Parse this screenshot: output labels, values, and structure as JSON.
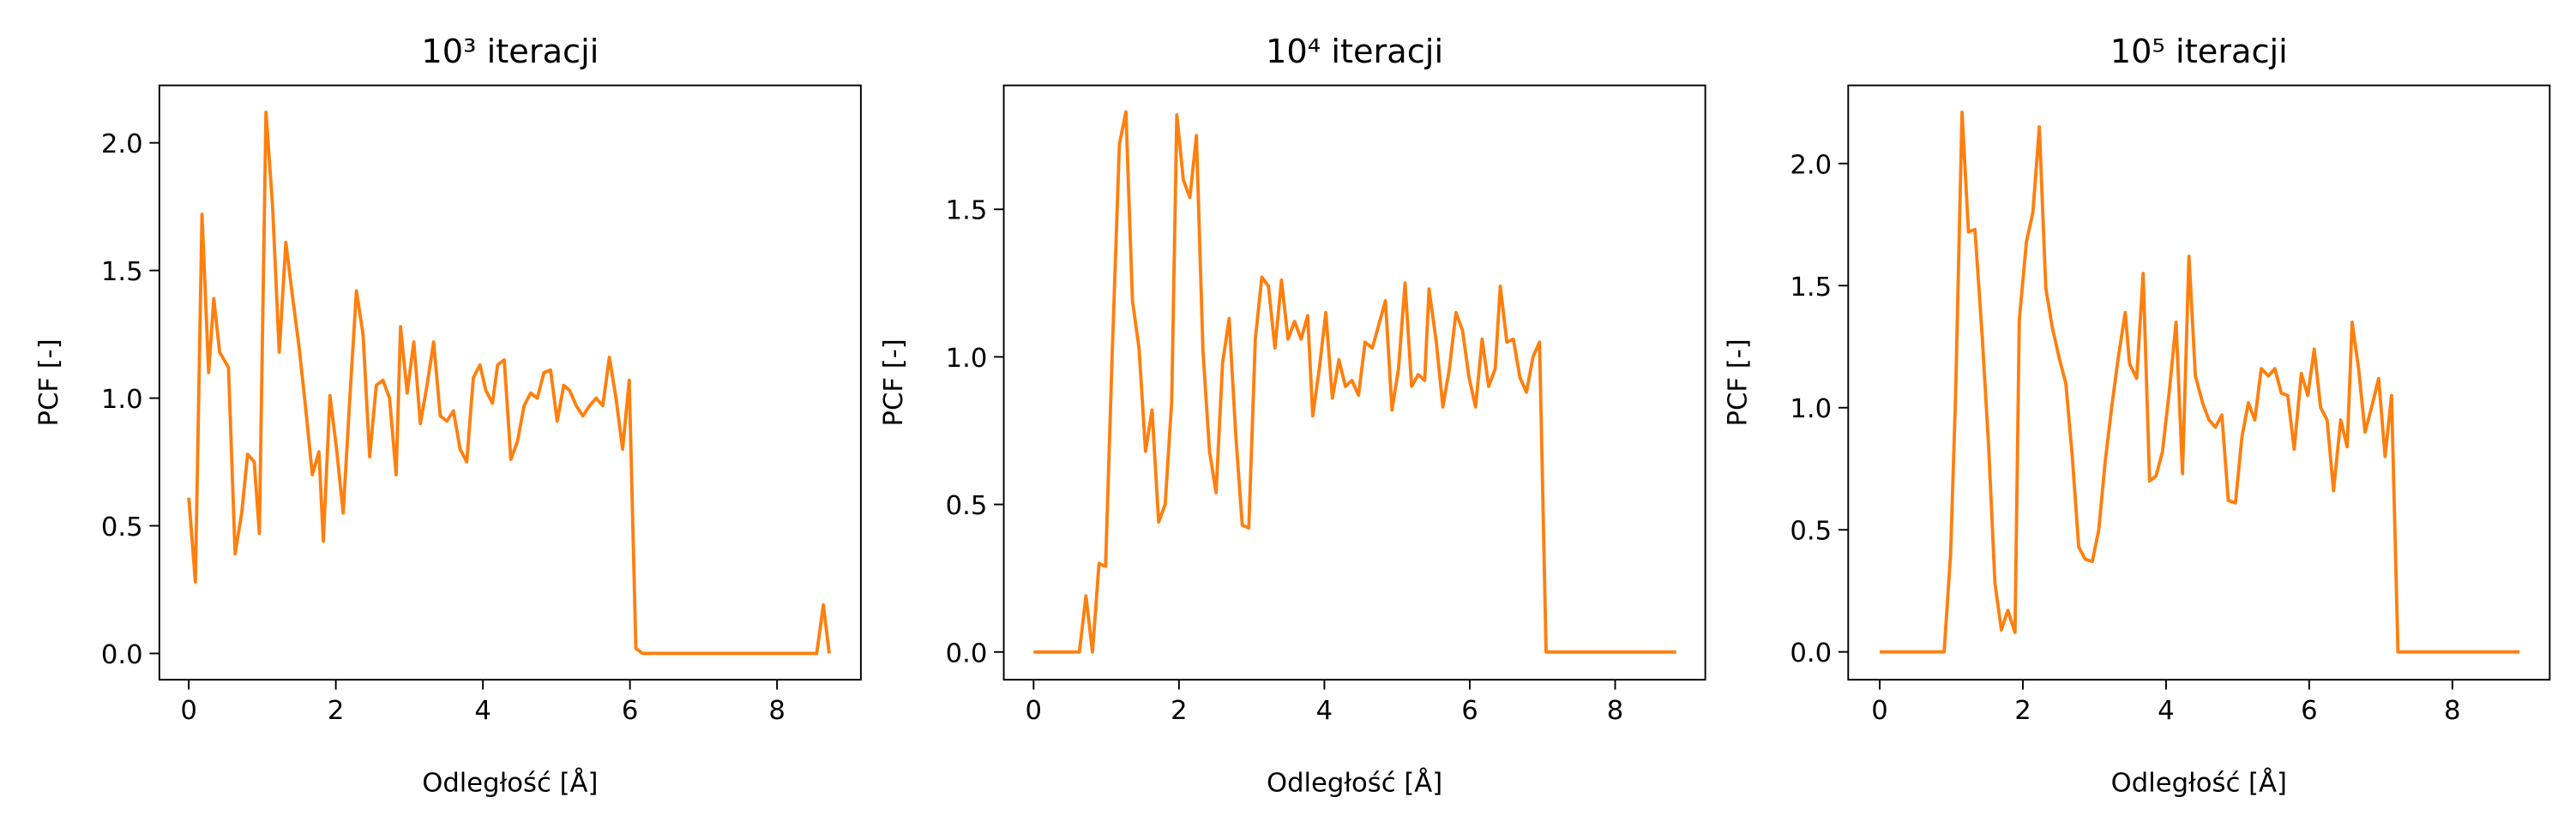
{
  "chart_data": [
    {
      "type": "line",
      "title": "10³ iteracji",
      "xlabel": "Odległość [Å]",
      "ylabel": "PCF [-]",
      "color": "#ff7f0e",
      "xlim": [
        -0.4,
        9.14
      ],
      "ylim": [
        -0.103,
        2.225
      ],
      "xticks": [
        0,
        2,
        4,
        6,
        8
      ],
      "yticks": [
        {
          "value": 0,
          "label": "0.0"
        },
        {
          "value": 0.5,
          "label": "0.5"
        },
        {
          "value": 1,
          "label": "1.0"
        },
        {
          "value": 1.5,
          "label": "1.5"
        },
        {
          "value": 2,
          "label": "2.0"
        }
      ],
      "x": [
        0,
        0.09,
        0.18,
        0.27,
        0.34,
        0.42,
        0.54,
        0.63,
        0.72,
        0.8,
        0.89,
        0.96,
        1.05,
        1.14,
        1.23,
        1.32,
        1.41,
        1.5,
        1.59,
        1.68,
        1.77,
        1.83,
        1.92,
        2.01,
        2.1,
        2.19,
        2.28,
        2.37,
        2.46,
        2.55,
        2.64,
        2.73,
        2.82,
        2.88,
        2.97,
        3.06,
        3.15,
        3.24,
        3.33,
        3.42,
        3.51,
        3.6,
        3.69,
        3.78,
        3.87,
        3.96,
        4.04,
        4.13,
        4.2,
        4.29,
        4.38,
        4.47,
        4.56,
        4.65,
        4.74,
        4.83,
        4.92,
        5.01,
        5.1,
        5.18,
        5.27,
        5.36,
        5.45,
        5.54,
        5.63,
        5.72,
        5.81,
        5.9,
        5.99,
        6.08,
        6.17,
        8.54,
        8.63,
        8.71
      ],
      "values": [
        0.61,
        0.28,
        1.72,
        1.1,
        1.39,
        1.18,
        1.12,
        0.39,
        0.55,
        0.78,
        0.75,
        0.47,
        2.12,
        1.75,
        1.18,
        1.61,
        1.4,
        1.2,
        0.96,
        0.7,
        0.79,
        0.44,
        1.01,
        0.8,
        0.55,
        1.0,
        1.42,
        1.25,
        0.77,
        1.05,
        1.07,
        1.0,
        0.7,
        1.28,
        1.02,
        1.22,
        0.9,
        1.05,
        1.22,
        0.93,
        0.91,
        0.95,
        0.8,
        0.75,
        1.08,
        1.13,
        1.03,
        0.98,
        1.13,
        1.15,
        0.76,
        0.83,
        0.97,
        1.02,
        1.0,
        1.1,
        1.11,
        0.91,
        1.05,
        1.03,
        0.97,
        0.93,
        0.97,
        1.0,
        0.97,
        1.16,
        1.0,
        0.8,
        1.07,
        0.02,
        0,
        0,
        0.19,
        0
      ]
    },
    {
      "type": "line",
      "title": "10⁴ iteracji",
      "xlabel": "Odległość [Å]",
      "ylabel": "PCF [-]",
      "color": "#ff7f0e",
      "xlim": [
        -0.41,
        9.24
      ],
      "ylim": [
        -0.094,
        1.92
      ],
      "xticks": [
        0,
        2,
        4,
        6,
        8
      ],
      "yticks": [
        {
          "value": 0,
          "label": "0.0"
        },
        {
          "value": 0.5,
          "label": "0.5"
        },
        {
          "value": 1,
          "label": "1.0"
        },
        {
          "value": 1.5,
          "label": "1.5"
        }
      ],
      "x": [
        0,
        0.63,
        0.72,
        0.81,
        0.9,
        0.99,
        1.08,
        1.18,
        1.27,
        1.36,
        1.45,
        1.54,
        1.63,
        1.72,
        1.81,
        1.9,
        1.97,
        2.06,
        2.15,
        2.24,
        2.33,
        2.42,
        2.51,
        2.6,
        2.69,
        2.78,
        2.87,
        2.96,
        3.05,
        3.14,
        3.23,
        3.32,
        3.41,
        3.5,
        3.59,
        3.68,
        3.77,
        3.84,
        3.93,
        4.02,
        4.11,
        4.2,
        4.29,
        4.38,
        4.47,
        4.56,
        4.66,
        4.75,
        4.84,
        4.93,
        5.02,
        5.11,
        5.2,
        5.29,
        5.38,
        5.44,
        5.54,
        5.63,
        5.72,
        5.81,
        5.9,
        5.99,
        6.08,
        6.17,
        6.26,
        6.35,
        6.42,
        6.51,
        6.6,
        6.69,
        6.78,
        6.87,
        6.96,
        7.05,
        8.84
      ],
      "values": [
        0,
        0,
        0.19,
        0,
        0.3,
        0.29,
        1.0,
        1.72,
        1.83,
        1.19,
        1.03,
        0.68,
        0.82,
        0.44,
        0.5,
        0.85,
        1.82,
        1.6,
        1.54,
        1.75,
        1.02,
        0.68,
        0.54,
        0.98,
        1.13,
        0.74,
        0.43,
        0.42,
        1.06,
        1.27,
        1.24,
        1.03,
        1.26,
        1.06,
        1.12,
        1.06,
        1.14,
        0.8,
        0.96,
        1.15,
        0.86,
        0.99,
        0.9,
        0.92,
        0.87,
        1.05,
        1.03,
        1.11,
        1.19,
        0.82,
        0.96,
        1.25,
        0.9,
        0.94,
        0.92,
        1.23,
        1.05,
        0.83,
        0.96,
        1.15,
        1.09,
        0.93,
        0.83,
        1.06,
        0.9,
        0.96,
        1.24,
        1.05,
        1.06,
        0.93,
        0.88,
        1.0,
        1.05,
        0,
        0
      ]
    },
    {
      "type": "line",
      "title": "10⁵ iteracji",
      "xlabel": "Odległość [Å]",
      "ylabel": "PCF [-]",
      "color": "#ff7f0e",
      "xlim": [
        -0.44,
        9.36
      ],
      "ylim": [
        -0.114,
        2.32
      ],
      "xticks": [
        0,
        2,
        4,
        6,
        8
      ],
      "yticks": [
        {
          "value": 0,
          "label": "0.0"
        },
        {
          "value": 0.5,
          "label": "0.5"
        },
        {
          "value": 1,
          "label": "1.0"
        },
        {
          "value": 1.5,
          "label": "1.5"
        },
        {
          "value": 2,
          "label": "2.0"
        }
      ],
      "x": [
        0,
        0.9,
        0.99,
        1.06,
        1.15,
        1.24,
        1.33,
        1.43,
        1.52,
        1.61,
        1.7,
        1.79,
        1.89,
        1.95,
        2.05,
        2.14,
        2.23,
        2.32,
        2.41,
        2.51,
        2.6,
        2.69,
        2.78,
        2.87,
        2.97,
        3.06,
        3.15,
        3.24,
        3.33,
        3.43,
        3.49,
        3.59,
        3.68,
        3.77,
        3.86,
        3.95,
        4.05,
        4.14,
        4.23,
        4.32,
        4.41,
        4.51,
        4.6,
        4.69,
        4.78,
        4.87,
        4.97,
        5.06,
        5.15,
        5.24,
        5.33,
        5.43,
        5.52,
        5.61,
        5.7,
        5.79,
        5.89,
        5.98,
        6.07,
        6.16,
        6.25,
        6.34,
        6.44,
        6.53,
        6.6,
        6.69,
        6.78,
        6.87,
        6.97,
        7.06,
        7.15,
        7.24,
        8.94
      ],
      "values": [
        0,
        0,
        0.4,
        1.05,
        2.21,
        1.72,
        1.73,
        1.3,
        0.85,
        0.28,
        0.09,
        0.17,
        0.08,
        1.36,
        1.68,
        1.8,
        2.15,
        1.49,
        1.33,
        1.2,
        1.1,
        0.8,
        0.43,
        0.38,
        0.37,
        0.5,
        0.78,
        1.0,
        1.2,
        1.39,
        1.18,
        1.12,
        1.55,
        0.7,
        0.72,
        0.82,
        1.08,
        1.35,
        0.73,
        1.62,
        1.13,
        1.02,
        0.95,
        0.92,
        0.97,
        0.62,
        0.61,
        0.88,
        1.02,
        0.95,
        1.16,
        1.13,
        1.16,
        1.06,
        1.05,
        0.83,
        1.14,
        1.05,
        1.24,
        1.0,
        0.95,
        0.66,
        0.95,
        0.84,
        1.35,
        1.16,
        0.9,
        1.0,
        1.12,
        0.8,
        1.05,
        0,
        0
      ]
    }
  ]
}
